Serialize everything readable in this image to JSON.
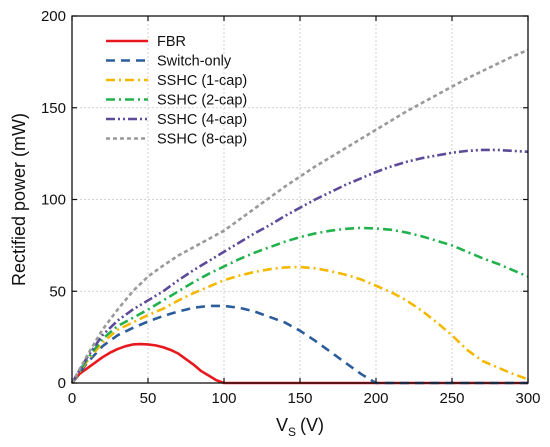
{
  "chart_data": {
    "type": "line",
    "xlabel": "V",
    "xlabel_sub": "S",
    "xlabel_unit": "(V)",
    "ylabel": "Rectified power (mW)",
    "xlim": [
      0,
      300
    ],
    "ylim": [
      0,
      200
    ],
    "xticks": [
      0,
      50,
      100,
      150,
      200,
      250,
      300
    ],
    "yticks": [
      0,
      50,
      100,
      150,
      200
    ],
    "xtick_labels": [
      "0",
      "50",
      "100",
      "150",
      "200",
      "250",
      "300"
    ],
    "ytick_labels": [
      "0",
      "50",
      "100",
      "150",
      "200"
    ],
    "grid": true,
    "legend_position": "top-left",
    "series": [
      {
        "name": "FBR",
        "color": "#e8191e",
        "dash": "solid",
        "x": [
          0,
          5,
          10,
          15,
          20,
          25,
          30,
          35,
          40,
          45,
          50,
          55,
          60,
          65,
          70,
          75,
          80,
          85,
          90,
          95,
          100,
          120,
          150,
          200,
          250,
          300
        ],
        "y": [
          0,
          5,
          8,
          11,
          14,
          16.5,
          18.5,
          20,
          21,
          21.2,
          21,
          20.5,
          19.5,
          18,
          16,
          13,
          10,
          6.5,
          4,
          1.5,
          0,
          0,
          0,
          0,
          0,
          0
        ]
      },
      {
        "name": "Switch-only",
        "color": "#2b5d9c",
        "dash": "dash",
        "x": [
          0,
          10,
          20,
          30,
          40,
          50,
          60,
          70,
          80,
          90,
          100,
          110,
          120,
          130,
          140,
          150,
          160,
          170,
          180,
          190,
          200,
          210,
          250,
          300
        ],
        "y": [
          0,
          11,
          20,
          26,
          30,
          33.5,
          36.5,
          39,
          41,
          42,
          42,
          41,
          39,
          36,
          33,
          28.5,
          23,
          17,
          11,
          5,
          0,
          0,
          0,
          0
        ]
      },
      {
        "name": "SSHC (1-cap)",
        "color": "#f5b800",
        "dash": "dashdot",
        "x": [
          0,
          10,
          20,
          30,
          40,
          50,
          60,
          70,
          80,
          90,
          100,
          110,
          120,
          130,
          140,
          150,
          160,
          170,
          180,
          190,
          200,
          210,
          220,
          230,
          240,
          250,
          260,
          270,
          280,
          290,
          300
        ],
        "y": [
          0,
          12,
          22,
          29,
          33,
          37,
          40.5,
          45,
          49,
          52.5,
          56,
          58.5,
          60.5,
          62,
          63,
          63.2,
          62.5,
          61,
          59,
          56.5,
          53,
          49.5,
          45,
          39.5,
          33,
          26,
          18,
          12,
          8.5,
          5,
          2
        ]
      },
      {
        "name": "SSHC (2-cap)",
        "color": "#22b14c",
        "dash": "dashdot",
        "x": [
          0,
          10,
          20,
          30,
          40,
          50,
          60,
          70,
          80,
          90,
          100,
          110,
          120,
          130,
          140,
          150,
          160,
          170,
          180,
          190,
          200,
          210,
          220,
          230,
          240,
          250,
          260,
          270,
          280,
          290,
          300
        ],
        "y": [
          0,
          13,
          24,
          31,
          35.5,
          40,
          45,
          50,
          55,
          59.5,
          63.5,
          67.5,
          71,
          74,
          77,
          79.5,
          81.5,
          83,
          84,
          84.5,
          84.2,
          83.5,
          82,
          80,
          77.5,
          75,
          71.5,
          68,
          65,
          61.5,
          58
        ]
      },
      {
        "name": "SSHC (4-cap)",
        "color": "#5d4b9a",
        "dash": "dashdotdot",
        "x": [
          0,
          10,
          20,
          30,
          40,
          50,
          60,
          70,
          80,
          90,
          100,
          110,
          120,
          130,
          140,
          150,
          160,
          170,
          180,
          190,
          200,
          210,
          220,
          230,
          240,
          250,
          260,
          270,
          280,
          290,
          300
        ],
        "y": [
          0,
          14,
          26,
          34,
          40,
          45,
          50,
          56,
          61.5,
          66.5,
          71.5,
          76.5,
          81.5,
          86,
          91,
          95.5,
          100,
          104,
          108,
          111.5,
          115,
          118,
          120.5,
          122.5,
          124,
          125.5,
          126.5,
          127,
          127,
          126.5,
          126
        ]
      },
      {
        "name": "SSHC (8-cap)",
        "color": "#999999",
        "dash": "dot",
        "x": [
          0,
          10,
          20,
          30,
          40,
          50,
          60,
          70,
          80,
          90,
          100,
          110,
          120,
          130,
          140,
          150,
          160,
          170,
          180,
          190,
          200,
          210,
          220,
          230,
          240,
          250,
          260,
          270,
          280,
          290,
          300
        ],
        "y": [
          0,
          15,
          29,
          40,
          50,
          58,
          64,
          69.5,
          74,
          78.5,
          83,
          89,
          95,
          101,
          107,
          112.5,
          118,
          123,
          128,
          133,
          138,
          143,
          148,
          152.5,
          157,
          161.5,
          166,
          170,
          174,
          178,
          181.5
        ]
      }
    ]
  }
}
